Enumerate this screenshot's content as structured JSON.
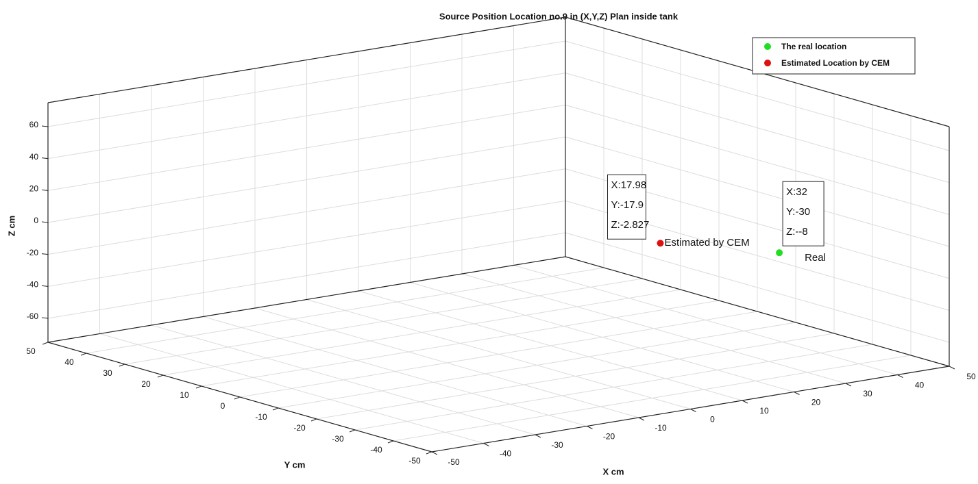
{
  "chart_data": {
    "type": "scatter3d",
    "title": "Source Position Location no.9 in (X,Y,Z) Plan inside tank",
    "xlabel": "X cm",
    "ylabel": "Y cm",
    "zlabel": "Z cm",
    "xlim": [
      -50,
      50
    ],
    "ylim": [
      -50,
      50
    ],
    "zlim": [
      -75,
      75
    ],
    "xticks": [
      -50,
      -40,
      -30,
      -20,
      -10,
      0,
      10,
      20,
      30,
      40,
      50
    ],
    "yticks": [
      -50,
      -40,
      -30,
      -20,
      -10,
      0,
      10,
      20,
      30,
      40,
      50
    ],
    "zticks": [
      -60,
      -40,
      -20,
      0,
      20,
      40,
      60
    ],
    "grid": true,
    "legend": "upper right",
    "series": [
      {
        "name": "The real location",
        "color": "#22dd22",
        "x": [
          32
        ],
        "y": [
          -30
        ],
        "z": [
          -8
        ],
        "label": "Real",
        "datatip": [
          "X:32",
          "Y:-30",
          "Z:--8"
        ]
      },
      {
        "name": "Estimated Location by CEM",
        "color": "#dd1111",
        "x": [
          17.98
        ],
        "y": [
          -17.9
        ],
        "z": [
          -2.827
        ],
        "label": "Estimated by CEM",
        "datatip": [
          "X:17.98",
          "Y:-17.9",
          "Z:-2.827"
        ]
      }
    ]
  }
}
